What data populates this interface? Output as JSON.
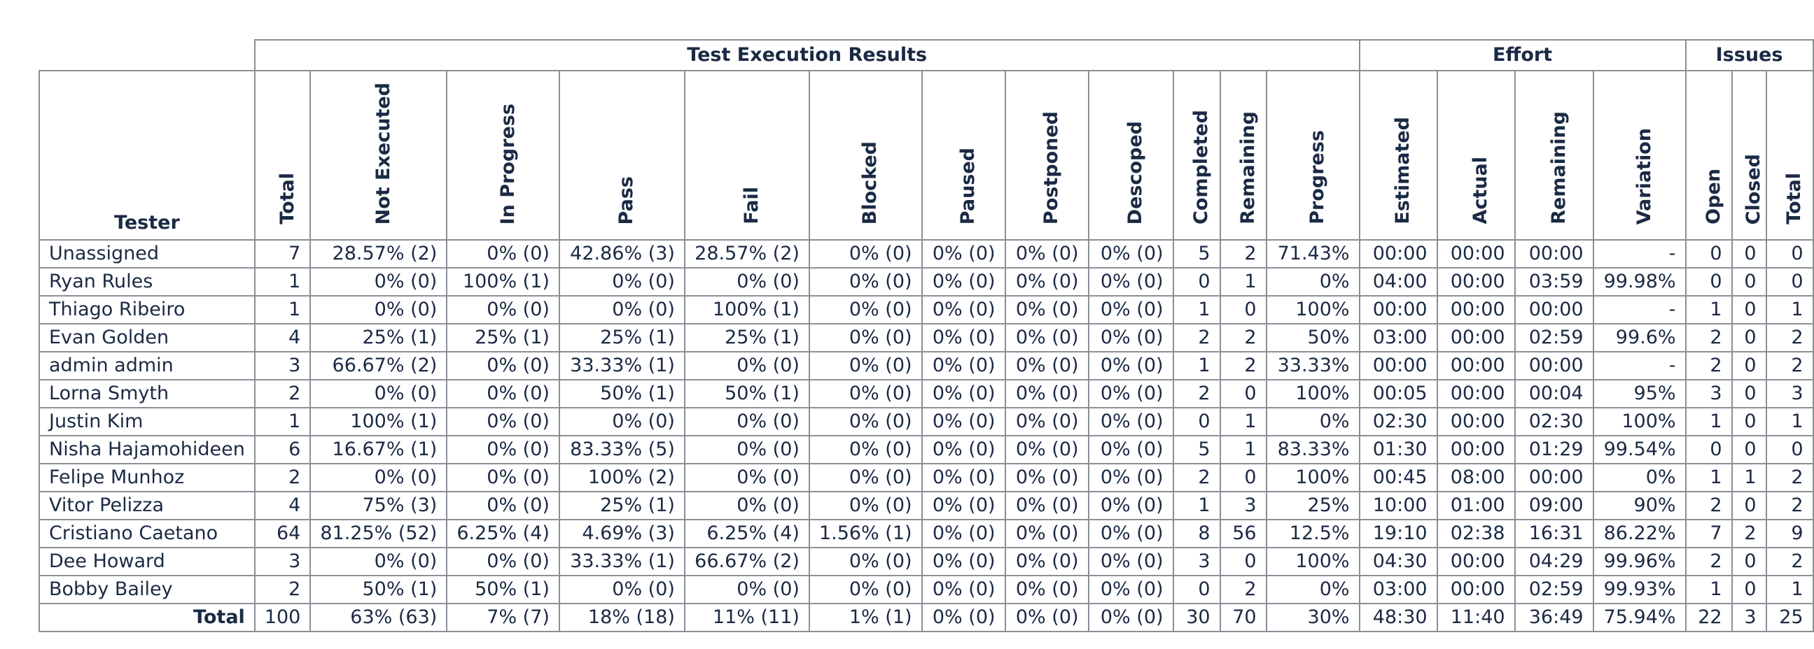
{
  "groups": {
    "results": "Test Execution Results",
    "effort": "Effort",
    "issues": "Issues"
  },
  "columns": {
    "tester": "Tester",
    "total": "Total",
    "not_executed": "Not Executed",
    "in_progress": "In Progress",
    "pass": "Pass",
    "fail": "Fail",
    "blocked": "Blocked",
    "paused": "Paused",
    "postponed": "Postponed",
    "descoped": "Descoped",
    "completed": "Completed",
    "remaining": "Remaining",
    "progress": "Progress",
    "estimated": "Estimated",
    "actual": "Actual",
    "effort_remaining": "Remaining",
    "variation": "Variation",
    "open": "Open",
    "closed": "Closed",
    "issues_total": "Total"
  },
  "rows": [
    [
      "Unassigned",
      "7",
      "28.57% (2)",
      "0% (0)",
      "42.86% (3)",
      "28.57% (2)",
      "0% (0)",
      "0% (0)",
      "0% (0)",
      "0% (0)",
      "5",
      "2",
      "71.43%",
      "00:00",
      "00:00",
      "00:00",
      "-",
      "0",
      "0",
      "0"
    ],
    [
      "Ryan Rules",
      "1",
      "0% (0)",
      "100% (1)",
      "0% (0)",
      "0% (0)",
      "0% (0)",
      "0% (0)",
      "0% (0)",
      "0% (0)",
      "0",
      "1",
      "0%",
      "04:00",
      "00:00",
      "03:59",
      "99.98%",
      "0",
      "0",
      "0"
    ],
    [
      "Thiago Ribeiro",
      "1",
      "0% (0)",
      "0% (0)",
      "0% (0)",
      "100% (1)",
      "0% (0)",
      "0% (0)",
      "0% (0)",
      "0% (0)",
      "1",
      "0",
      "100%",
      "00:00",
      "00:00",
      "00:00",
      "-",
      "1",
      "0",
      "1"
    ],
    [
      "Evan Golden",
      "4",
      "25% (1)",
      "25% (1)",
      "25% (1)",
      "25% (1)",
      "0% (0)",
      "0% (0)",
      "0% (0)",
      "0% (0)",
      "2",
      "2",
      "50%",
      "03:00",
      "00:00",
      "02:59",
      "99.6%",
      "2",
      "0",
      "2"
    ],
    [
      "admin admin",
      "3",
      "66.67% (2)",
      "0% (0)",
      "33.33% (1)",
      "0% (0)",
      "0% (0)",
      "0% (0)",
      "0% (0)",
      "0% (0)",
      "1",
      "2",
      "33.33%",
      "00:00",
      "00:00",
      "00:00",
      "-",
      "2",
      "0",
      "2"
    ],
    [
      "Lorna Smyth",
      "2",
      "0% (0)",
      "0% (0)",
      "50% (1)",
      "50% (1)",
      "0% (0)",
      "0% (0)",
      "0% (0)",
      "0% (0)",
      "2",
      "0",
      "100%",
      "00:05",
      "00:00",
      "00:04",
      "95%",
      "3",
      "0",
      "3"
    ],
    [
      "Justin Kim",
      "1",
      "100% (1)",
      "0% (0)",
      "0% (0)",
      "0% (0)",
      "0% (0)",
      "0% (0)",
      "0% (0)",
      "0% (0)",
      "0",
      "1",
      "0%",
      "02:30",
      "00:00",
      "02:30",
      "100%",
      "1",
      "0",
      "1"
    ],
    [
      "Nisha Hajamohideen",
      "6",
      "16.67% (1)",
      "0% (0)",
      "83.33% (5)",
      "0% (0)",
      "0% (0)",
      "0% (0)",
      "0% (0)",
      "0% (0)",
      "5",
      "1",
      "83.33%",
      "01:30",
      "00:00",
      "01:29",
      "99.54%",
      "0",
      "0",
      "0"
    ],
    [
      "Felipe Munhoz",
      "2",
      "0% (0)",
      "0% (0)",
      "100% (2)",
      "0% (0)",
      "0% (0)",
      "0% (0)",
      "0% (0)",
      "0% (0)",
      "2",
      "0",
      "100%",
      "00:45",
      "08:00",
      "00:00",
      "0%",
      "1",
      "1",
      "2"
    ],
    [
      "Vitor Pelizza",
      "4",
      "75% (3)",
      "0% (0)",
      "25% (1)",
      "0% (0)",
      "0% (0)",
      "0% (0)",
      "0% (0)",
      "0% (0)",
      "1",
      "3",
      "25%",
      "10:00",
      "01:00",
      "09:00",
      "90%",
      "2",
      "0",
      "2"
    ],
    [
      "Cristiano Caetano",
      "64",
      "81.25% (52)",
      "6.25% (4)",
      "4.69% (3)",
      "6.25% (4)",
      "1.56% (1)",
      "0% (0)",
      "0% (0)",
      "0% (0)",
      "8",
      "56",
      "12.5%",
      "19:10",
      "02:38",
      "16:31",
      "86.22%",
      "7",
      "2",
      "9"
    ],
    [
      "Dee Howard",
      "3",
      "0% (0)",
      "0% (0)",
      "33.33% (1)",
      "66.67% (2)",
      "0% (0)",
      "0% (0)",
      "0% (0)",
      "0% (0)",
      "3",
      "0",
      "100%",
      "04:30",
      "00:00",
      "04:29",
      "99.96%",
      "2",
      "0",
      "2"
    ],
    [
      "Bobby Bailey",
      "2",
      "50% (1)",
      "50% (1)",
      "0% (0)",
      "0% (0)",
      "0% (0)",
      "0% (0)",
      "0% (0)",
      "0% (0)",
      "0",
      "2",
      "0%",
      "03:00",
      "00:00",
      "02:59",
      "99.93%",
      "1",
      "0",
      "1"
    ]
  ],
  "total_row": [
    "Total",
    "100",
    "63% (63)",
    "7% (7)",
    "18% (18)",
    "11% (11)",
    "1% (1)",
    "0% (0)",
    "0% (0)",
    "0% (0)",
    "30",
    "70",
    "30%",
    "48:30",
    "11:40",
    "36:49",
    "75.94%",
    "22",
    "3",
    "25"
  ]
}
